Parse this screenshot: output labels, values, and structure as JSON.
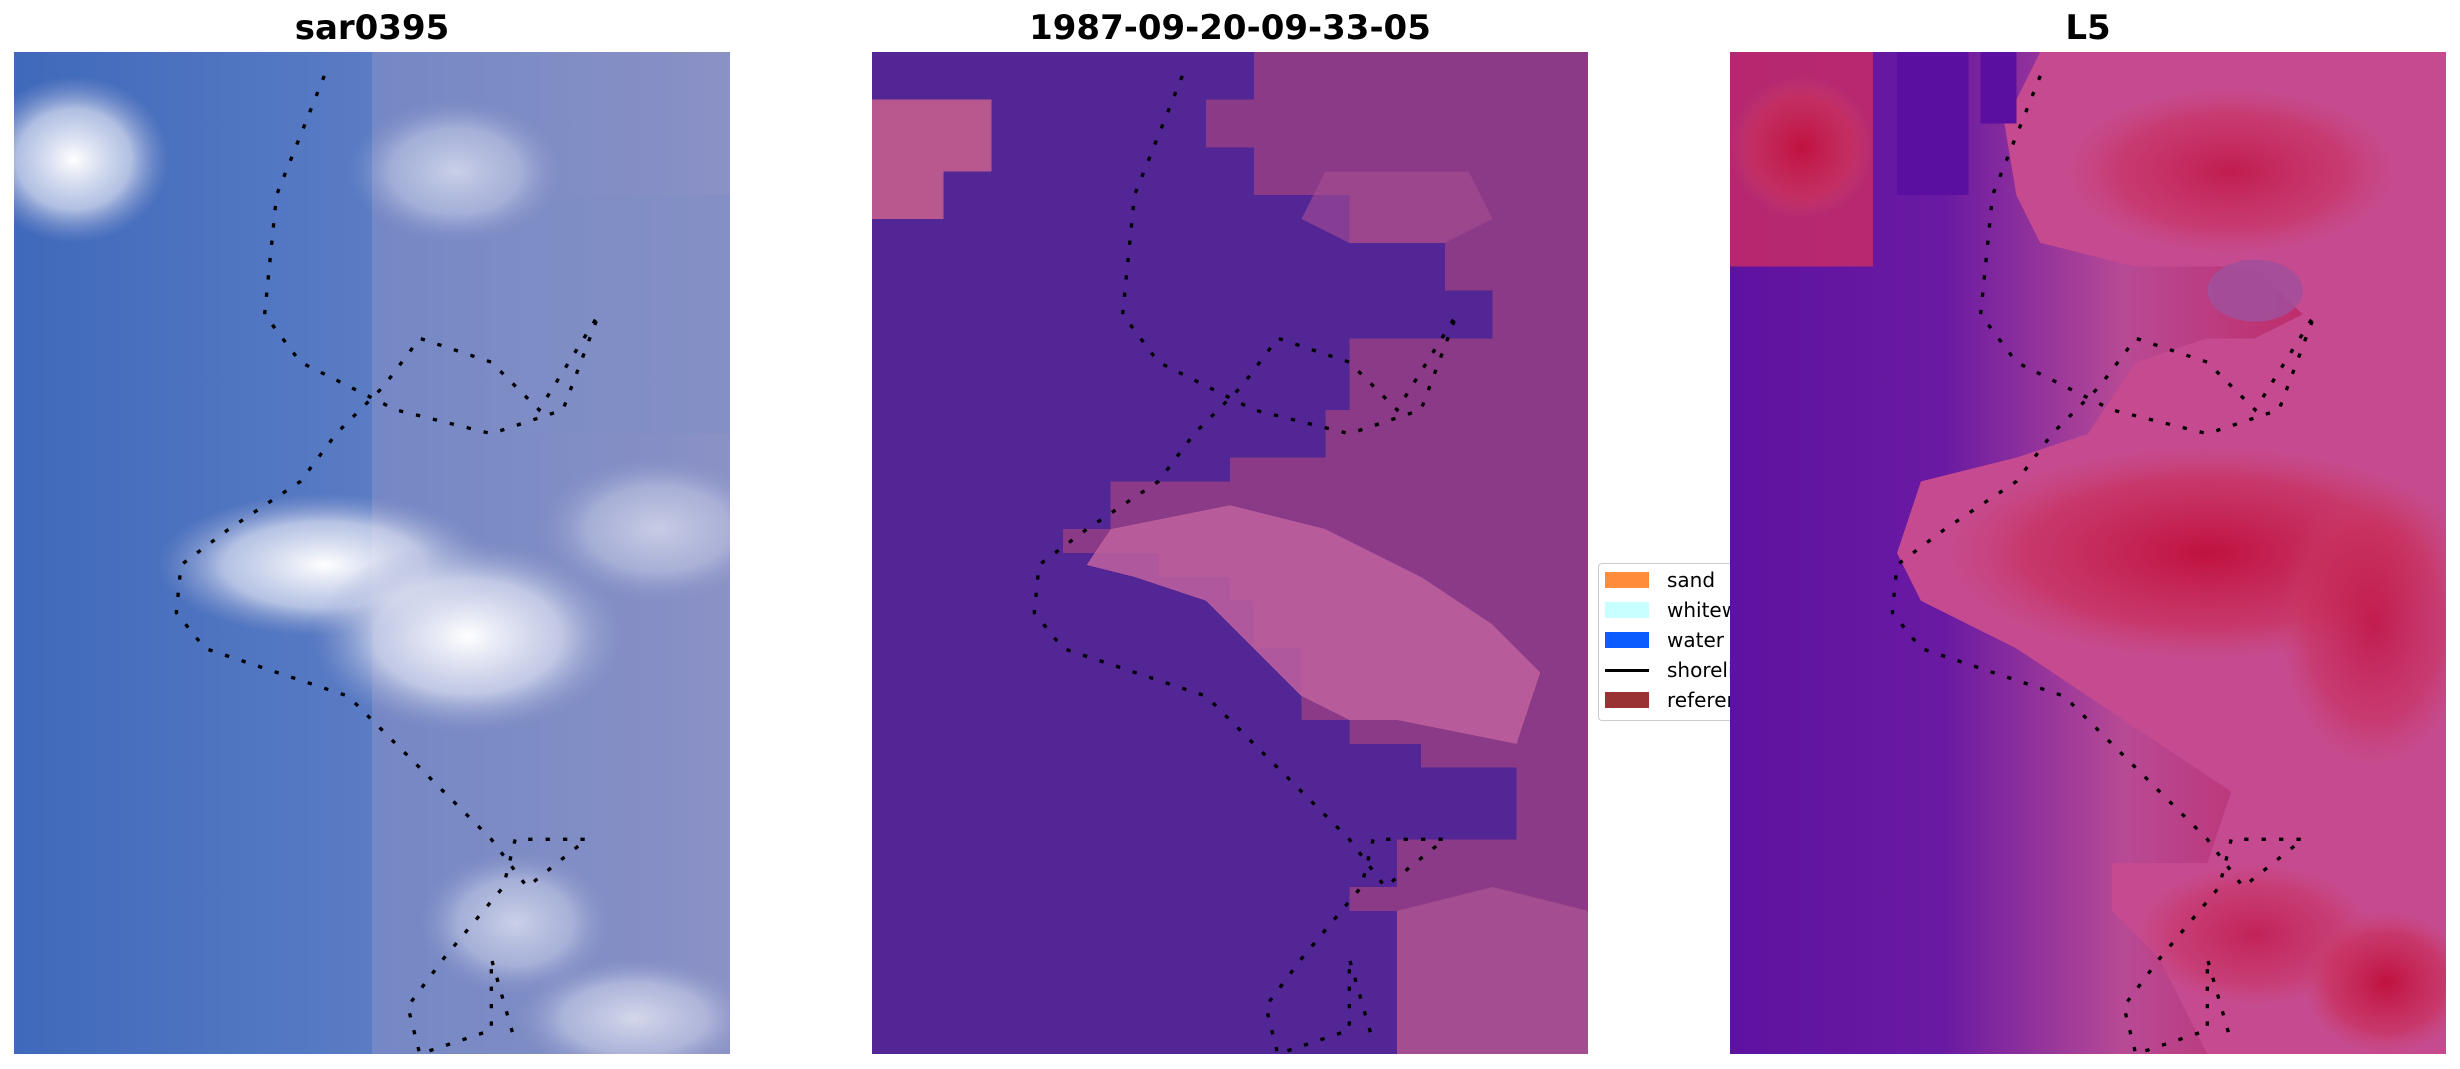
{
  "panels": [
    {
      "title": "sar0395",
      "kind": "rgb-composite",
      "palette": [
        "#4470bf",
        "#8899c8",
        "#e8eaf5",
        "#ffffff"
      ]
    },
    {
      "title": "1987-09-20-09-33-05",
      "kind": "classification",
      "palette": [
        "#532696",
        "#8a3a86",
        "#c0629f"
      ]
    },
    {
      "title": "L5",
      "kind": "index-map",
      "palette": [
        "#5b0fa0",
        "#c74d8e",
        "#c0113f"
      ]
    }
  ],
  "legend": {
    "items": [
      {
        "label": "sand",
        "color": "#ff8c3b",
        "type": "patch"
      },
      {
        "label": "whitewater",
        "color": "#c8ffff",
        "type": "patch"
      },
      {
        "label": "water",
        "color": "#0a5cff",
        "type": "patch"
      },
      {
        "label": "shoreline",
        "color": "#000000",
        "type": "line"
      },
      {
        "label": "reference shoreline",
        "color": "#993333",
        "type": "patch"
      }
    ]
  }
}
